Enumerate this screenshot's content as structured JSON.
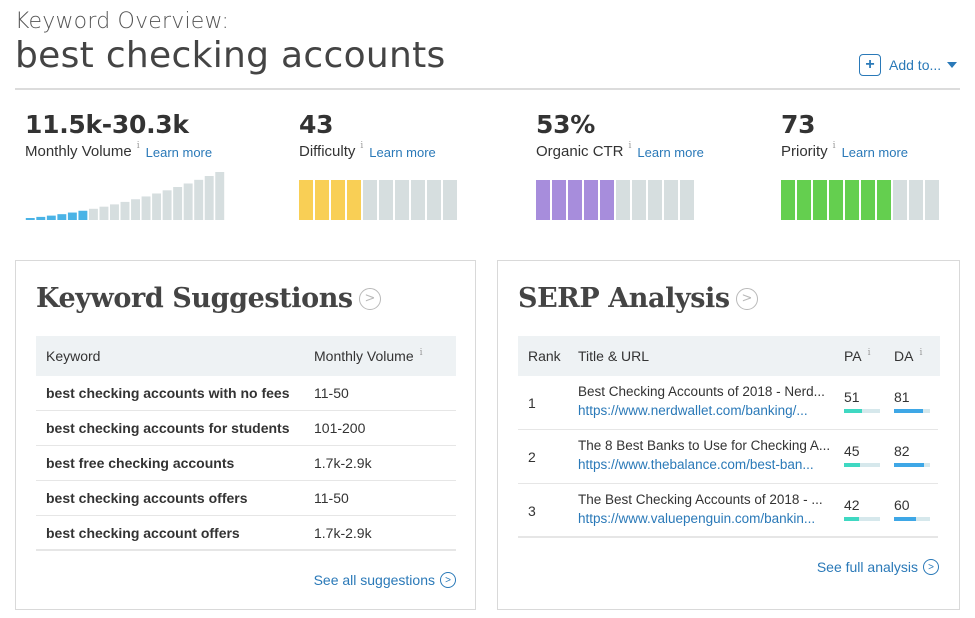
{
  "header": {
    "subtitle": "Keyword Overview:",
    "keyword": "best checking accounts",
    "add_to_label": "Add to..."
  },
  "metrics": {
    "learn_more": "Learn more",
    "volume": {
      "value": "11.5k-30.3k",
      "label": "Monthly Volume",
      "filled_bars": 6,
      "total_bars": 19
    },
    "difficulty": {
      "value": "43",
      "label": "Difficulty",
      "score": 43,
      "color": "#f9cf55"
    },
    "ctr": {
      "value": "53%",
      "label": "Organic CTR",
      "score": 53,
      "color": "#a78ddc"
    },
    "priority": {
      "value": "73",
      "label": "Priority",
      "score": 73,
      "color": "#64cf4f"
    }
  },
  "suggestions": {
    "title": "Keyword Suggestions",
    "col_keyword": "Keyword",
    "col_volume": "Monthly Volume",
    "rows": [
      {
        "keyword": "best checking accounts with no fees",
        "volume": "11-50"
      },
      {
        "keyword": "best checking accounts for students",
        "volume": "101-200"
      },
      {
        "keyword": "best free checking accounts",
        "volume": "1.7k-2.9k"
      },
      {
        "keyword": "best checking accounts offers",
        "volume": "11-50"
      },
      {
        "keyword": "best checking account offers",
        "volume": "1.7k-2.9k"
      }
    ],
    "see_all": "See all suggestions"
  },
  "serp": {
    "title": "SERP Analysis",
    "col_rank": "Rank",
    "col_title": "Title & URL",
    "col_pa": "PA",
    "col_da": "DA",
    "rows": [
      {
        "rank": "1",
        "title": "Best Checking Accounts of 2018 - Nerd...",
        "url": "https://www.nerdwallet.com/banking/...",
        "pa": "51",
        "da": "81",
        "pa_pct": 51,
        "da_pct": 81
      },
      {
        "rank": "2",
        "title": "The 8 Best Banks to Use for Checking A...",
        "url": "https://www.thebalance.com/best-ban...",
        "pa": "45",
        "da": "82",
        "pa_pct": 45,
        "da_pct": 82
      },
      {
        "rank": "3",
        "title": "The Best Checking Accounts of 2018 - ...",
        "url": "https://www.valuepenguin.com/bankin...",
        "pa": "42",
        "da": "60",
        "pa_pct": 42,
        "da_pct": 60
      }
    ],
    "see_full": "See full analysis"
  },
  "colors": {
    "link": "#2a79b8",
    "pa_bar": "#3fd8c2",
    "da_bar": "#3ea7e6",
    "volume_bar": "#4ab3e6",
    "empty_bar": "#d6dedf"
  }
}
